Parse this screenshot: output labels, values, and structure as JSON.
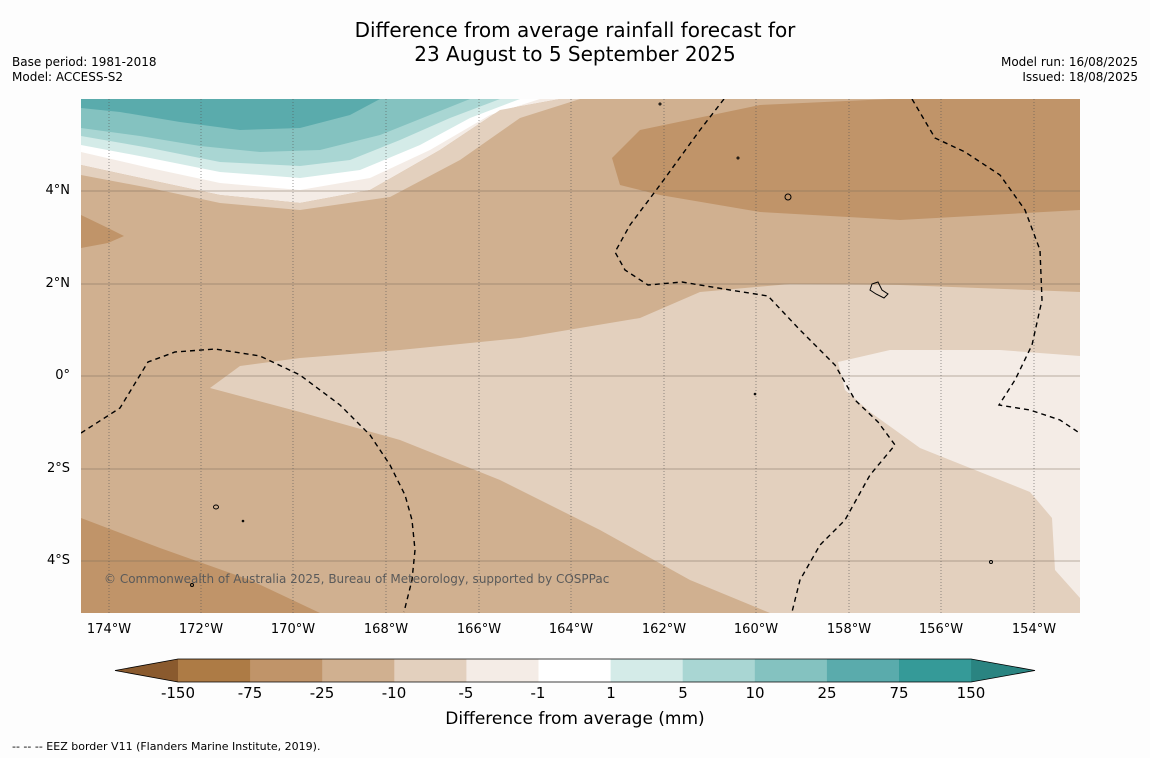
{
  "title": {
    "line1": "Difference from average rainfall forecast for",
    "line2": "23 August to 5 September 2025"
  },
  "meta_left": {
    "base_period": "Base period: 1981-2018",
    "model": "Model: ACCESS-S2"
  },
  "meta_right": {
    "model_run": "Model run: 16/08/2025",
    "issued": "Issued: 18/08/2025"
  },
  "map": {
    "lat_ticks": [
      "4°N",
      "2°N",
      "0°",
      "2°S",
      "4°S"
    ],
    "lon_ticks": [
      "174°W",
      "172°W",
      "170°W",
      "168°W",
      "166°W",
      "164°W",
      "162°W",
      "160°W",
      "158°W",
      "156°W",
      "154°W"
    ],
    "copyright": "© Commonwealth of Australia 2025, Bureau of Meteorology, supported by COSPPac",
    "colors": {
      "brown_dark": "#c09469",
      "brown_mid": "#d0b090",
      "brown_light": "#e3d0be",
      "cream": "#f4ece6",
      "white": "#ffffff",
      "teal_1": "#d4ebe8",
      "teal_2": "#a9d6d3",
      "teal_3": "#84c2c0",
      "teal_4": "#5aabac"
    }
  },
  "colorbar": {
    "labels": [
      "-150",
      "-75",
      "-25",
      "-10",
      "-5",
      "-1",
      "1",
      "5",
      "10",
      "25",
      "75",
      "150"
    ],
    "colors": [
      "#8a5a2e",
      "#ad7b45",
      "#c09469",
      "#d0b090",
      "#e3d0be",
      "#f4ece6",
      "#ffffff",
      "#d4ebe8",
      "#a9d6d3",
      "#84c2c0",
      "#5aabac",
      "#359a98",
      "#2a8481"
    ],
    "title": "Difference from average (mm)"
  },
  "footnote": "--  --  -- EEZ border V11 (Flanders Marine Institute, 2019)."
}
